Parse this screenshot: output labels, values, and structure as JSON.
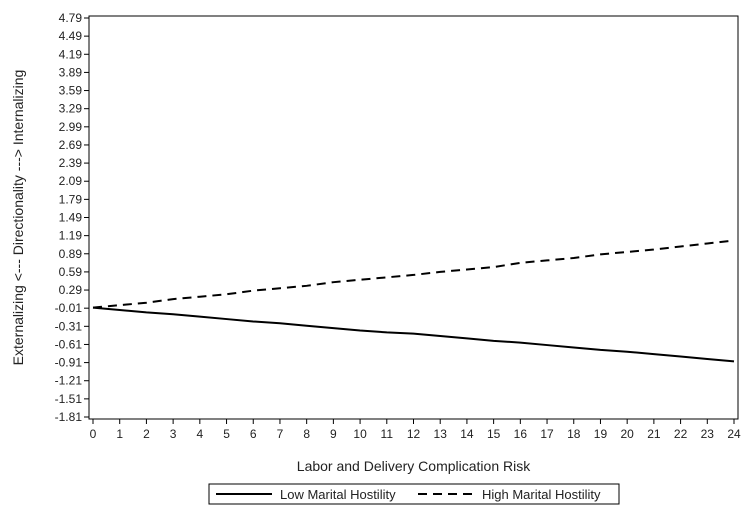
{
  "chart_data": {
    "type": "line",
    "title": "",
    "xlabel": "Labor and Delivery Complication Risk",
    "ylabel": "Externalizing <--- Directionality ---> Internalizing",
    "xlim": [
      0,
      24
    ],
    "ylim": [
      -1.81,
      4.79
    ],
    "x_ticks": [
      "0",
      "1",
      "2",
      "3",
      "4",
      "5",
      "6",
      "7",
      "8",
      "9",
      "10",
      "11",
      "12",
      "13",
      "14",
      "15",
      "16",
      "17",
      "18",
      "19",
      "20",
      "21",
      "22",
      "23",
      "24"
    ],
    "y_ticks": [
      "4.79",
      "4.49",
      "4.19",
      "3.89",
      "3.59",
      "3.29",
      "2.99",
      "2.69",
      "2.39",
      "2.09",
      "1.79",
      "1.49",
      "1.19",
      "0.89",
      "0.59",
      "0.29",
      "-0.01",
      "-0.31",
      "-0.61",
      "-0.91",
      "-1.21",
      "-1.51",
      "-1.81"
    ],
    "grid": false,
    "legend_position": "bottom",
    "x": [
      0,
      1,
      2,
      3,
      4,
      5,
      6,
      7,
      8,
      9,
      10,
      11,
      12,
      13,
      14,
      15,
      16,
      17,
      18,
      19,
      20,
      21,
      22,
      23,
      24
    ],
    "series": [
      {
        "name": "Low Marital Hostility",
        "line_style": "solid",
        "color": "#000000",
        "values": [
          0.0,
          -0.04,
          -0.08,
          -0.11,
          -0.15,
          -0.19,
          -0.23,
          -0.26,
          -0.3,
          -0.34,
          -0.38,
          -0.41,
          -0.43,
          -0.47,
          -0.51,
          -0.55,
          -0.58,
          -0.62,
          -0.66,
          -0.7,
          -0.73,
          -0.77,
          -0.81,
          -0.85,
          -0.89
        ]
      },
      {
        "name": "High Marital Hostility",
        "line_style": "dashed",
        "color": "#000000",
        "values": [
          0.0,
          0.04,
          0.08,
          0.14,
          0.18,
          0.22,
          0.28,
          0.32,
          0.36,
          0.42,
          0.46,
          0.5,
          0.54,
          0.59,
          0.63,
          0.67,
          0.74,
          0.78,
          0.82,
          0.88,
          0.92,
          0.96,
          1.01,
          1.06,
          1.11
        ]
      }
    ]
  }
}
